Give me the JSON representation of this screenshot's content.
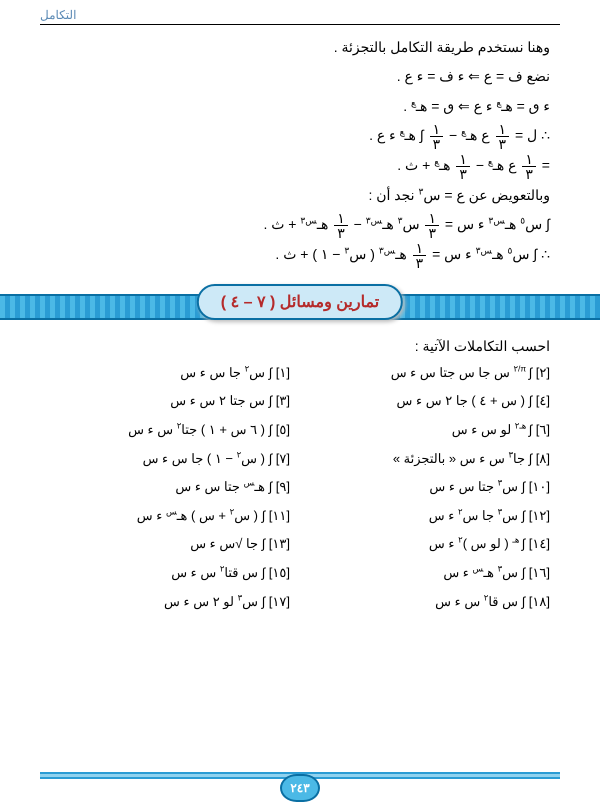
{
  "header": {
    "chapter": "التكامل"
  },
  "preamble": "وهنا نستخدم طريقة التكامل بالتجزئة .",
  "derivation": [
    "نضع  ف = ع        ⇐      ء ف = ء ع  .",
    "ء ٯ = هـ<span class='sup'>ع</span>  ء ع   ⇐      ٯ = هـ<span class='sup'>ع</span>  .",
    "∴  ل = <span class='frac'><span class='num'>١</span><span class='den'>٣</span></span> ع هـ<span class='sup'>ع</span>  − <span class='frac'><span class='num'>١</span><span class='den'>٣</span></span> ∫ هـ<span class='sup'>ع</span>  ء ع  .",
    "= <span class='frac'><span class='num'>١</span><span class='den'>٣</span></span> ع هـ<span class='sup'>ع</span> − <span class='frac'><span class='num'>١</span><span class='den'>٣</span></span> هـ<span class='sup'>ع</span>  + ث .",
    "وبالتعويض عن  ع = س<span class='sup'>٣</span>  نجد أن :",
    "∫ س<span class='sup'>٥</span> هـ<span class='sup'>س٣</span> ء س = <span class='frac'><span class='num'>١</span><span class='den'>٣</span></span> س<span class='sup'>٣</span> هـ<span class='sup'>س٣</span>  − <span class='frac'><span class='num'>١</span><span class='den'>٣</span></span> هـ<span class='sup'>س٣</span> + ث .",
    "∴   ∫ س<span class='sup'>٥</span> هـ<span class='sup'>س٣</span> ء س = <span class='frac'><span class='num'>١</span><span class='den'>٣</span></span> هـ<span class='sup'>س٣</span> ( س<span class='sup'>٣</span> − ١ )  + ث ."
  ],
  "banner": "تمارين ومسائل ( ٧ – ٤ )",
  "exercises_title": "احسب التكاملات الآتية :",
  "exercises": [
    [
      "[١]  ∫ س<span class='sup'>٢</span> جا س ء س",
      "[٢]  ∫<span class='sup'> π/٢</span> س جا س جتا س  ء س"
    ],
    [
      "[٣]  ∫ س جتا ٢ س ء س",
      "[٤]  ∫ ( س + ٤ ) جا ٢ س ء س"
    ],
    [
      "[٥]  ∫ ( ٦ س + ١ ) جتا<span class='sup'>٢</span> س ء س",
      "[٦]  ∫<span class='sup'> هـ٢</span> لو س  ء س"
    ],
    [
      "[٧]  ∫ ( س<span class='sup'>٢</span> − ١ ) جا س ء س",
      "[٨]  ∫  جا<span class='sup'>٣</span> س  ء س   « بالتجزئة »"
    ],
    [
      "[٩]  ∫ هـ<span class='sup'>س</span> جتا س  ء س",
      "[١٠]  ∫ س<span class='sup'>٣</span> جتا س  ء س"
    ],
    [
      "[١١]  ∫ ( س<span class='sup'>٢</span> + س ) هـ<span class='sup'>س</span>  ء س",
      "[١٢]  ∫ س<span class='sup'>٣</span> جا س<span class='sup'>٢</span> ء س"
    ],
    [
      "[١٣]  ∫ جا √س  ء س",
      "[١٤]  ∫<span class='sup'> هـ</span> ( لو س )<span class='sup'>٢</span> ء س"
    ],
    [
      "[١٥]  ∫ س قتا<span class='sup'>٢</span> س  ء س",
      "[١٦]  ∫ س<span class='sup'>٣</span> هـ<span class='sup'>س</span>  ء س"
    ],
    [
      "[١٧]  ∫ س<span class='sup'>٣</span> لو ٢ س  ء س",
      "[١٨]  ∫ س قا<span class='sup'>٢</span> س  ء س"
    ]
  ],
  "page_number": "٢٤٣",
  "colors": {
    "header_text": "#5b8ab5",
    "banner_bg": "#cde9f7",
    "banner_border": "#0a6fa3",
    "banner_text": "#b52b2b",
    "pattern_a": "#4bb9e6",
    "pattern_b": "#2a9cd4",
    "body_text": "#000000",
    "background": "#ffffff"
  }
}
